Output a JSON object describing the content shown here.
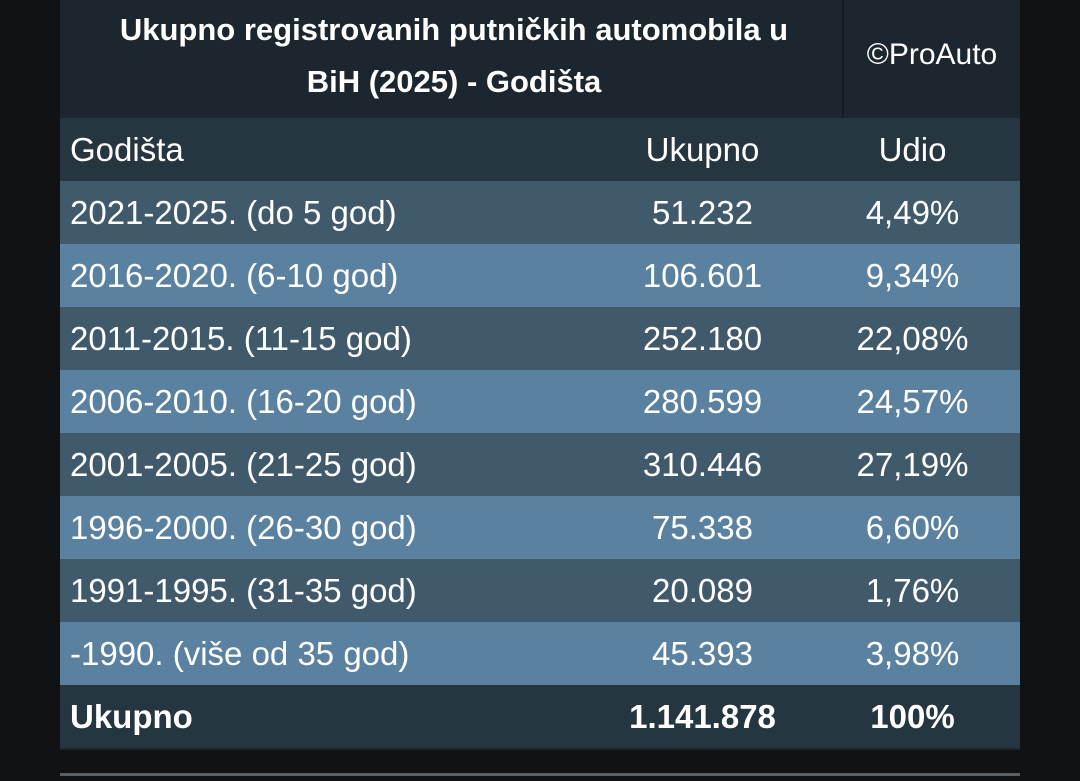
{
  "title": {
    "line1": "Ukupno registrovanih putničkih automobila u",
    "line2": "BiH (2025) - Godišta",
    "brand": "©ProAuto"
  },
  "table": {
    "headers": [
      "Godišta",
      "Ukupno",
      "Udio"
    ],
    "rows": [
      [
        "2021-2025. (do 5 god)",
        "51.232",
        "4,49%"
      ],
      [
        "2016-2020. (6-10 god)",
        "106.601",
        "9,34%"
      ],
      [
        "2011-2015. (11-15 god)",
        "252.180",
        "22,08%"
      ],
      [
        "2006-2010. (16-20 god)",
        "280.599",
        "24,57%"
      ],
      [
        "2001-2005. (21-25 god)",
        "310.446",
        "27,19%"
      ],
      [
        "1996-2000. (26-30 god)",
        "75.338",
        "6,60%"
      ],
      [
        "1991-1995. (31-35 god)",
        "20.089",
        "1,76%"
      ],
      [
        "-1990. (više od 35 god)",
        "45.393",
        "3,98%"
      ]
    ],
    "total": [
      "Ukupno",
      "1.141.878",
      "100%"
    ]
  },
  "colors": {
    "header_bg": "#1c262e",
    "row_dark": "#405a6c",
    "row_light": "#5a82a0",
    "text": "#ffffff"
  }
}
